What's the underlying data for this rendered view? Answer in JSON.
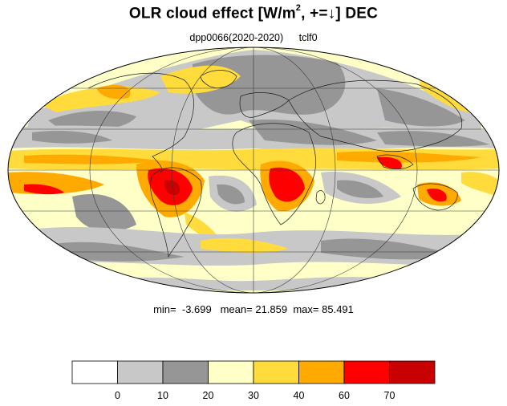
{
  "title": {
    "main": "OLR cloud effect [W/m",
    "sup": "2",
    "rest": ", +=↓]  DEC"
  },
  "subtitle": {
    "run": "dpp0066(2020-2020)",
    "var": "tclf0"
  },
  "stats": {
    "min_label": "min=",
    "min": "-3.699",
    "mean_label": "mean=",
    "mean": "21.859",
    "max_label": "max=",
    "max": "85.491"
  },
  "colorbar": {
    "colors": [
      "#ffffff",
      "#c8c8c8",
      "#969696",
      "#ffffc8",
      "#ffdc3c",
      "#ffaa00",
      "#ff0000",
      "#c80000"
    ],
    "tick_labels": [
      "0",
      "10",
      "20",
      "30",
      "40",
      "60",
      "70"
    ]
  },
  "map": {
    "projection": "Mollweide",
    "background_class_color": "#ffffc8"
  }
}
